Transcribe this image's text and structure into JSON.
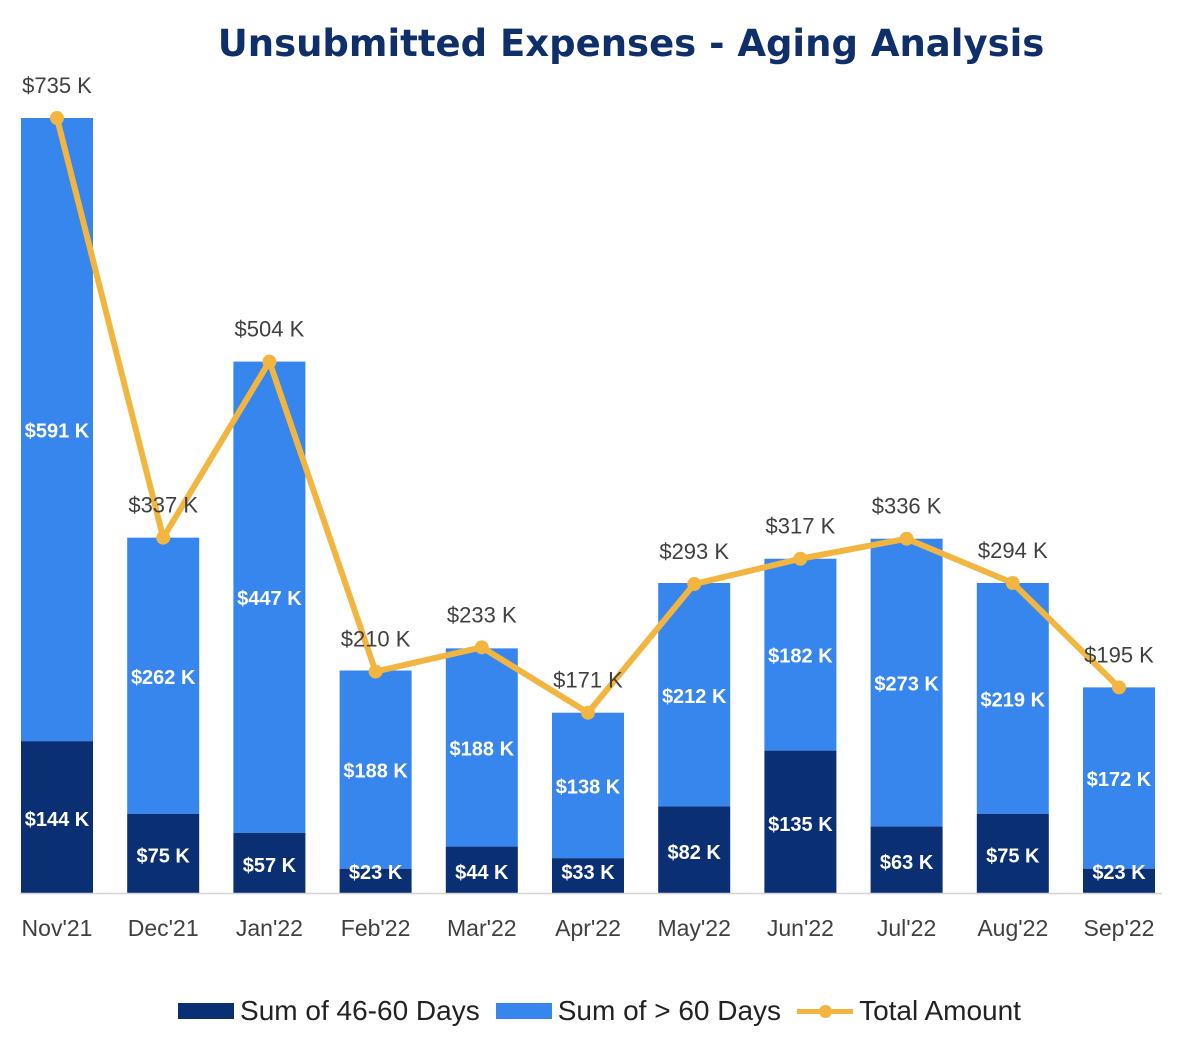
{
  "chart_data": {
    "type": "bar",
    "stacked": true,
    "title": "Unsubmitted Expenses - Aging Analysis",
    "categories": [
      "Nov'21",
      "Dec'21",
      "Jan'22",
      "Feb'22",
      "Mar'22",
      "Apr'22",
      "May'22",
      "Jun'22",
      "Jul'22",
      "Aug'22",
      "Sep'22"
    ],
    "series": [
      {
        "name": "Sum of 46-60 Days",
        "type": "bar",
        "color": "#0a2f73",
        "values": [
          144,
          75,
          57,
          23,
          44,
          33,
          82,
          135,
          63,
          75,
          23
        ],
        "labels": [
          "$144 K",
          "$75 K",
          "$57 K",
          "$23 K",
          "$44 K",
          "$33 K",
          "$82 K",
          "$135 K",
          "$63 K",
          "$75 K",
          "$23 K"
        ]
      },
      {
        "name": "Sum of > 60 Days",
        "type": "bar",
        "color": "#3786ee",
        "values": [
          591,
          262,
          447,
          188,
          188,
          138,
          212,
          182,
          273,
          219,
          172
        ],
        "labels": [
          "$591 K",
          "$262 K",
          "$447 K",
          "$188 K",
          "$188 K",
          "$138 K",
          "$212 K",
          "$182 K",
          "$273 K",
          "$219 K",
          "$172 K"
        ]
      },
      {
        "name": "Total Amount",
        "type": "line",
        "color": "#f2b540",
        "values": [
          735,
          337,
          504,
          210,
          233,
          171,
          293,
          317,
          336,
          294,
          195
        ],
        "labels": [
          "$735 K",
          "$337 K",
          "$504 K",
          "$210 K",
          "$233 K",
          "$171 K",
          "$293 K",
          "$317 K",
          "$336 K",
          "$294 K",
          "$195 K"
        ]
      }
    ],
    "ylim": [
      0,
      735
    ],
    "grid": false,
    "legend_position": "bottom"
  }
}
